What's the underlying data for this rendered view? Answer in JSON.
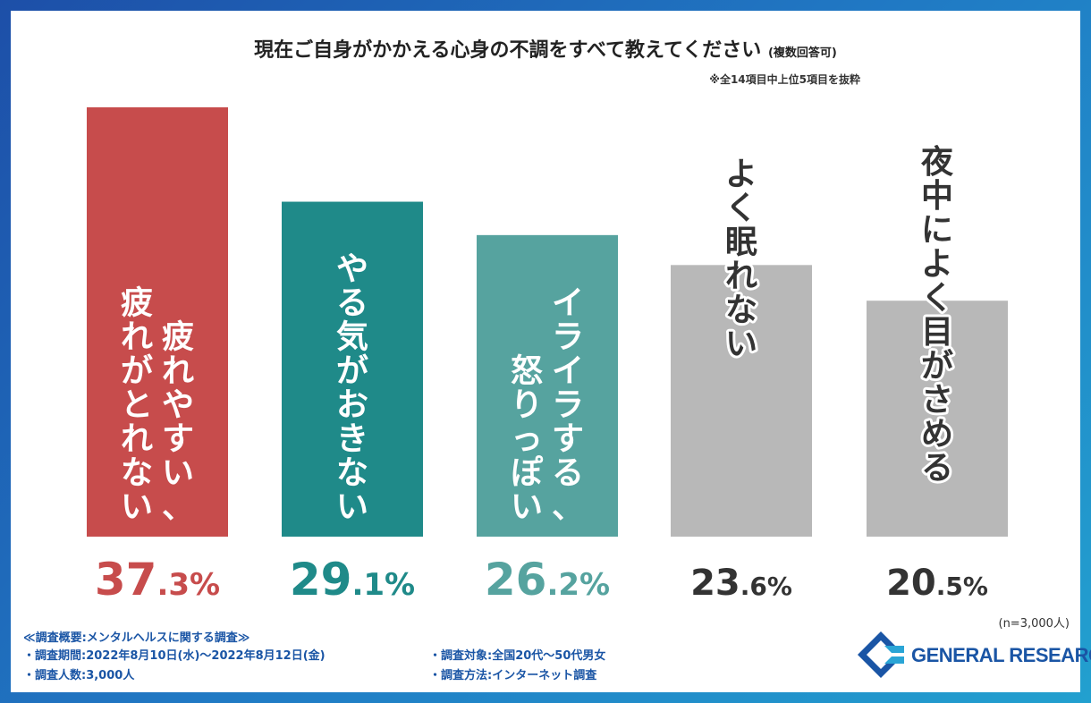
{
  "title": "現在ご自身がかかえる心身の不調をすべて教えてください",
  "title_suffix": "(複数回答可)",
  "note": "※全14項目中上位5項目を抜粋",
  "sample_size": "(n=3,000人)",
  "summary": {
    "heading": "≪調査概要:メンタルヘルスに関する調査≫",
    "period": "・調査期間:2022年8月10日(水)〜2022年8月12日(金)",
    "count": "・調査人数:3,000人",
    "target": "・調査対象:全国20代〜50代男女",
    "method": "・調査方法:インターネット調査"
  },
  "logo": {
    "text": "GENERAL RESEARCH",
    "color": "#1a55a5"
  },
  "chart_data": {
    "type": "bar",
    "title": "現在ご自身がかかえる心身の不調をすべて教えてください",
    "categories": [
      "疲れやすい、疲れがとれない",
      "やる気がおきない",
      "イライラする、怒りっぽい",
      "よく眠れない",
      "夜中によく目がさめる"
    ],
    "values": [
      37.3,
      29.1,
      26.2,
      23.6,
      20.5
    ],
    "value_labels": [
      {
        "int": "37",
        "dec": ".3%"
      },
      {
        "int": "29",
        "dec": ".1%"
      },
      {
        "int": "26",
        "dec": ".2%"
      },
      {
        "int": "23",
        "dec": ".6%"
      },
      {
        "int": "20",
        "dec": ".5%"
      }
    ],
    "bar_text_columns": [
      [
        "疲れやすい、",
        "疲れがとれない"
      ],
      [
        "やる気がおきない"
      ],
      [
        "イライラする、",
        "怒りっぽい"
      ],
      [
        "よく眠れない"
      ],
      [
        "夜中によく目がさめる"
      ]
    ],
    "colors": [
      "#c74c4c",
      "#1f8a89",
      "#56a39f",
      "#b8b8b8",
      "#b8b8b8"
    ],
    "label_colors": [
      "#c74c4c",
      "#1f8a89",
      "#56a39f",
      "#333333",
      "#333333"
    ],
    "bar_text_colors": [
      "#ffffff",
      "#ffffff",
      "#ffffff",
      "#333333",
      "#333333"
    ],
    "ylim": [
      0,
      37.3
    ],
    "unit": "%",
    "grid": false,
    "legend": "none"
  }
}
